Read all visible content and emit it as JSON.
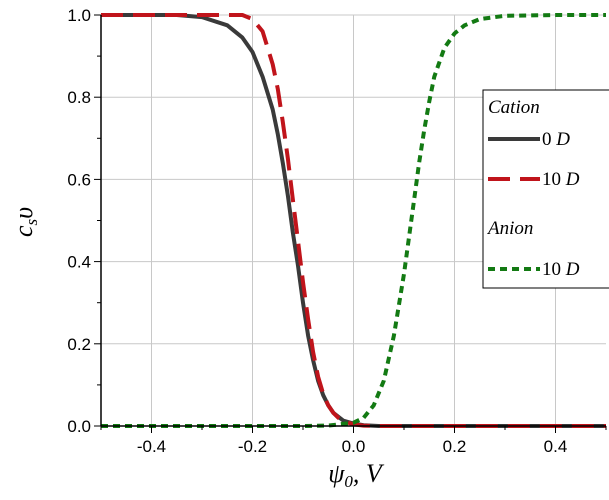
{
  "chart_data": {
    "type": "line",
    "xlabel_main": "ψ",
    "xlabel_sub": "0",
    "xlabel_rest": ", V",
    "ylabel_main": "c",
    "ylabel_sub": "s",
    "ylabel_rest": "υ",
    "xlim": [
      -0.5,
      0.5
    ],
    "ylim": [
      0.0,
      1.0
    ],
    "x_ticks": [
      -0.4,
      -0.2,
      0.0,
      0.2,
      0.4
    ],
    "x_tick_labels": [
      "-0.4",
      "-0.2",
      "0.0",
      "0.2",
      "0.4"
    ],
    "y_ticks": [
      0.0,
      0.2,
      0.4,
      0.6,
      0.8,
      1.0
    ],
    "y_tick_labels": [
      "0.0",
      "0.2",
      "0.4",
      "0.6",
      "0.8",
      "1.0"
    ],
    "grid": true,
    "legend_placement": "right",
    "legend": {
      "group1_title": "Cation",
      "group2_title": "Anion",
      "unit": "D"
    },
    "series": [
      {
        "name": "0 D",
        "group": "Cation",
        "color": "#3a3a3a",
        "style": "solid",
        "x": [
          -0.5,
          -0.35,
          -0.3,
          -0.25,
          -0.22,
          -0.2,
          -0.18,
          -0.16,
          -0.15,
          -0.14,
          -0.13,
          -0.12,
          -0.11,
          -0.1,
          -0.09,
          -0.08,
          -0.07,
          -0.06,
          -0.05,
          -0.04,
          -0.02,
          0.0,
          0.02,
          0.05,
          0.1,
          0.2,
          0.3,
          0.5
        ],
        "y": [
          1.0,
          1.0,
          0.995,
          0.975,
          0.945,
          0.91,
          0.85,
          0.77,
          0.71,
          0.64,
          0.56,
          0.47,
          0.39,
          0.3,
          0.22,
          0.16,
          0.11,
          0.075,
          0.05,
          0.032,
          0.013,
          0.006,
          0.002,
          0.0,
          0.0,
          0.0,
          0.0,
          0.0
        ]
      },
      {
        "name": "10 D",
        "group": "Cation",
        "color": "#c0141b",
        "style": "dashed",
        "x": [
          -0.5,
          -0.3,
          -0.22,
          -0.2,
          -0.18,
          -0.16,
          -0.15,
          -0.14,
          -0.13,
          -0.12,
          -0.11,
          -0.1,
          -0.09,
          -0.08,
          -0.07,
          -0.06,
          -0.05,
          -0.04,
          -0.03,
          -0.02,
          -0.01,
          0.0,
          0.02,
          0.05,
          0.1,
          0.2,
          0.3,
          0.5
        ],
        "y": [
          1.0,
          1.0,
          1.0,
          0.99,
          0.96,
          0.88,
          0.82,
          0.74,
          0.65,
          0.55,
          0.45,
          0.35,
          0.26,
          0.18,
          0.12,
          0.078,
          0.05,
          0.032,
          0.02,
          0.012,
          0.008,
          0.004,
          0.001,
          0.0,
          0.0,
          0.0,
          0.0,
          0.0
        ]
      },
      {
        "name": "10 D",
        "group": "Anion",
        "color": "#137a13",
        "style": "dotted",
        "x": [
          -0.5,
          -0.3,
          -0.1,
          -0.05,
          0.0,
          0.02,
          0.04,
          0.06,
          0.08,
          0.1,
          0.12,
          0.13,
          0.14,
          0.15,
          0.16,
          0.18,
          0.2,
          0.22,
          0.25,
          0.3,
          0.4,
          0.5
        ],
        "y": [
          0.0,
          0.0,
          0.0,
          0.001,
          0.008,
          0.02,
          0.05,
          0.11,
          0.22,
          0.37,
          0.55,
          0.64,
          0.72,
          0.79,
          0.85,
          0.92,
          0.955,
          0.975,
          0.99,
          0.998,
          1.0,
          1.0
        ]
      }
    ]
  }
}
